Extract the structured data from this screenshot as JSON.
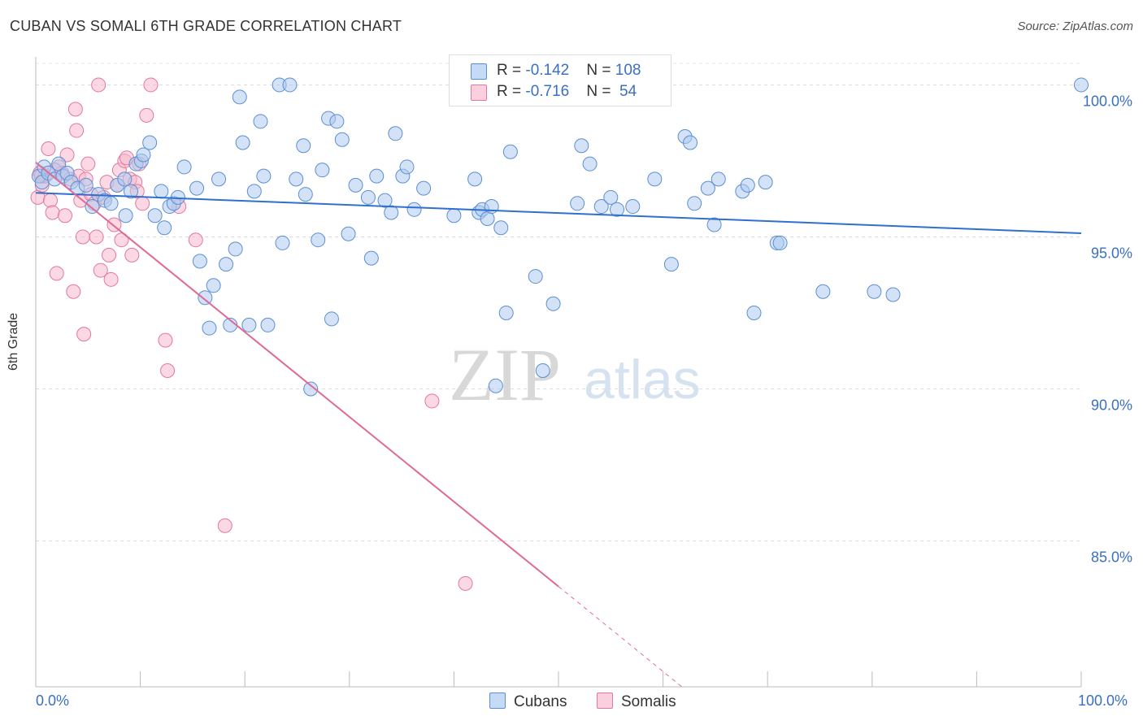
{
  "title": "CUBAN VS SOMALI 6TH GRADE CORRELATION CHART",
  "source": "Source: ZipAtlas.com",
  "watermark": {
    "zip": "ZIP",
    "atlas": "atlas"
  },
  "legend": {
    "rows": [
      {
        "r_label": "R = ",
        "r_value": "-0.142",
        "n_label": "N = ",
        "n_value": "108",
        "color": "#aecbef",
        "stroke": "#5b8fd4"
      },
      {
        "r_label": "R = ",
        "r_value": "-0.716",
        "n_label": "N = ",
        "n_value": " 54",
        "color": "#f7b8cc",
        "stroke": "#e2789c"
      }
    ],
    "bottom": [
      {
        "label": "Cubans",
        "color": "#aecbef",
        "stroke": "#5b8fd4"
      },
      {
        "label": "Somalis",
        "color": "#f7b8cc",
        "stroke": "#e2789c"
      }
    ]
  },
  "chart_data": {
    "type": "scatter",
    "title": "CUBAN VS SOMALI 6TH GRADE CORRELATION CHART",
    "xlabel": "",
    "ylabel": "6th Grade",
    "xlim": [
      0,
      100
    ],
    "ylim": [
      80.2,
      100.6
    ],
    "x_tick_labels": [
      "0.0%",
      "100.0%"
    ],
    "y_ticks": [
      85,
      90,
      95,
      100
    ],
    "y_tick_labels": [
      "85.0%",
      "90.0%",
      "95.0%",
      "100.0%"
    ],
    "grid": true,
    "legend_position": "top-center",
    "colors": {
      "cubans_fill": "#aecbef",
      "cubans_stroke": "#5b8fd4",
      "cubans_line": "#2f6fd0",
      "somalis_fill": "#f7b8cc",
      "somalis_stroke": "#e2789c",
      "somalis_line": "#e06a97"
    },
    "series": [
      {
        "name": "Cubans",
        "trend": {
          "x": [
            0,
            100
          ],
          "y": [
            96.45,
            95.12
          ],
          "dashed_from": null
        },
        "points": [
          [
            0.3,
            97.0
          ],
          [
            0.6,
            96.8
          ],
          [
            0.8,
            97.3
          ],
          [
            1.2,
            97.1
          ],
          [
            1.8,
            96.9
          ],
          [
            2.2,
            97.4
          ],
          [
            2.6,
            97.0
          ],
          [
            3.0,
            97.1
          ],
          [
            3.4,
            96.8
          ],
          [
            4.0,
            96.6
          ],
          [
            4.8,
            96.7
          ],
          [
            5.4,
            96.0
          ],
          [
            6.0,
            96.4
          ],
          [
            6.6,
            96.2
          ],
          [
            7.2,
            96.1
          ],
          [
            7.8,
            96.7
          ],
          [
            8.5,
            96.9
          ],
          [
            8.6,
            95.7
          ],
          [
            9.1,
            96.5
          ],
          [
            9.6,
            97.4
          ],
          [
            10.1,
            97.5
          ],
          [
            10.3,
            97.7
          ],
          [
            10.9,
            98.1
          ],
          [
            11.4,
            95.7
          ],
          [
            12.0,
            96.5
          ],
          [
            12.3,
            95.3
          ],
          [
            12.8,
            96.0
          ],
          [
            13.2,
            96.1
          ],
          [
            13.6,
            96.3
          ],
          [
            14.2,
            97.3
          ],
          [
            15.4,
            96.6
          ],
          [
            15.7,
            94.2
          ],
          [
            16.2,
            93.0
          ],
          [
            16.6,
            92.0
          ],
          [
            17.0,
            93.4
          ],
          [
            17.5,
            96.9
          ],
          [
            18.2,
            94.1
          ],
          [
            18.6,
            92.1
          ],
          [
            19.1,
            94.6
          ],
          [
            19.5,
            99.6
          ],
          [
            19.8,
            98.1
          ],
          [
            20.4,
            92.1
          ],
          [
            20.9,
            96.5
          ],
          [
            21.5,
            98.8
          ],
          [
            21.8,
            97.0
          ],
          [
            22.2,
            92.1
          ],
          [
            23.3,
            100.0
          ],
          [
            23.6,
            94.8
          ],
          [
            24.3,
            100.0
          ],
          [
            24.9,
            96.9
          ],
          [
            25.6,
            98.0
          ],
          [
            25.8,
            96.4
          ],
          [
            26.3,
            90.0
          ],
          [
            27.0,
            94.9
          ],
          [
            27.4,
            97.2
          ],
          [
            28.0,
            98.9
          ],
          [
            28.3,
            92.3
          ],
          [
            28.8,
            98.8
          ],
          [
            29.3,
            98.2
          ],
          [
            29.9,
            95.1
          ],
          [
            30.6,
            96.7
          ],
          [
            31.8,
            96.3
          ],
          [
            32.1,
            94.3
          ],
          [
            32.6,
            97.0
          ],
          [
            33.4,
            96.2
          ],
          [
            34.0,
            95.8
          ],
          [
            34.4,
            98.4
          ],
          [
            35.1,
            97.0
          ],
          [
            35.5,
            97.3
          ],
          [
            36.2,
            95.9
          ],
          [
            37.1,
            96.6
          ],
          [
            40.0,
            95.7
          ],
          [
            42.0,
            96.9
          ],
          [
            42.4,
            95.8
          ],
          [
            42.7,
            95.9
          ],
          [
            43.2,
            95.6
          ],
          [
            43.6,
            96.0
          ],
          [
            44.0,
            90.1
          ],
          [
            44.5,
            95.3
          ],
          [
            45.0,
            92.5
          ],
          [
            45.4,
            97.8
          ],
          [
            47.8,
            93.7
          ],
          [
            48.5,
            90.6
          ],
          [
            49.5,
            92.8
          ],
          [
            51.8,
            96.1
          ],
          [
            52.2,
            98.0
          ],
          [
            53.0,
            97.4
          ],
          [
            54.1,
            96.0
          ],
          [
            55.0,
            96.3
          ],
          [
            55.6,
            95.9
          ],
          [
            57.1,
            96.0
          ],
          [
            59.2,
            96.9
          ],
          [
            60.8,
            94.1
          ],
          [
            62.1,
            98.3
          ],
          [
            62.6,
            98.1
          ],
          [
            63.0,
            96.1
          ],
          [
            64.3,
            96.6
          ],
          [
            64.9,
            95.4
          ],
          [
            65.3,
            96.9
          ],
          [
            67.6,
            96.5
          ],
          [
            68.1,
            96.7
          ],
          [
            68.7,
            92.5
          ],
          [
            69.8,
            96.8
          ],
          [
            70.9,
            94.8
          ],
          [
            71.2,
            94.8
          ],
          [
            75.3,
            93.2
          ],
          [
            80.2,
            93.2
          ],
          [
            82.0,
            93.1
          ],
          [
            100.0,
            100.0
          ]
        ]
      },
      {
        "name": "Somalis",
        "trend": {
          "x": [
            0,
            50,
            61.8
          ],
          "y": [
            97.45,
            83.5,
            80.2
          ],
          "dashed_from": 50
        },
        "points": [
          [
            0.2,
            96.3
          ],
          [
            0.4,
            97.1
          ],
          [
            0.6,
            96.7
          ],
          [
            0.9,
            97.0
          ],
          [
            1.2,
            97.9
          ],
          [
            1.4,
            96.2
          ],
          [
            1.6,
            95.8
          ],
          [
            2.0,
            93.8
          ],
          [
            2.2,
            97.3
          ],
          [
            2.5,
            97.1
          ],
          [
            2.8,
            95.7
          ],
          [
            3.0,
            97.7
          ],
          [
            3.3,
            96.9
          ],
          [
            3.6,
            93.2
          ],
          [
            3.8,
            99.2
          ],
          [
            3.9,
            98.5
          ],
          [
            4.1,
            97.0
          ],
          [
            4.3,
            96.2
          ],
          [
            4.5,
            95.0
          ],
          [
            4.6,
            91.8
          ],
          [
            4.8,
            96.9
          ],
          [
            5.0,
            97.4
          ],
          [
            5.3,
            96.4
          ],
          [
            5.6,
            96.1
          ],
          [
            5.8,
            95.0
          ],
          [
            6.0,
            100.0
          ],
          [
            6.2,
            93.9
          ],
          [
            6.5,
            96.3
          ],
          [
            6.8,
            96.8
          ],
          [
            7.0,
            94.4
          ],
          [
            7.2,
            93.6
          ],
          [
            7.5,
            95.4
          ],
          [
            7.8,
            96.7
          ],
          [
            8.0,
            97.2
          ],
          [
            8.2,
            94.9
          ],
          [
            8.5,
            97.5
          ],
          [
            8.7,
            97.6
          ],
          [
            9.0,
            96.9
          ],
          [
            9.2,
            94.4
          ],
          [
            9.5,
            96.8
          ],
          [
            9.7,
            96.5
          ],
          [
            9.9,
            97.4
          ],
          [
            10.2,
            96.1
          ],
          [
            10.6,
            99.0
          ],
          [
            11.0,
            100.0
          ],
          [
            12.4,
            91.6
          ],
          [
            12.6,
            90.6
          ],
          [
            13.7,
            96.0
          ],
          [
            15.3,
            94.9
          ],
          [
            18.1,
            85.5
          ],
          [
            37.9,
            89.6
          ],
          [
            41.1,
            83.6
          ],
          [
            0.5,
            97.0
          ],
          [
            1.8,
            97.2
          ]
        ]
      }
    ]
  }
}
